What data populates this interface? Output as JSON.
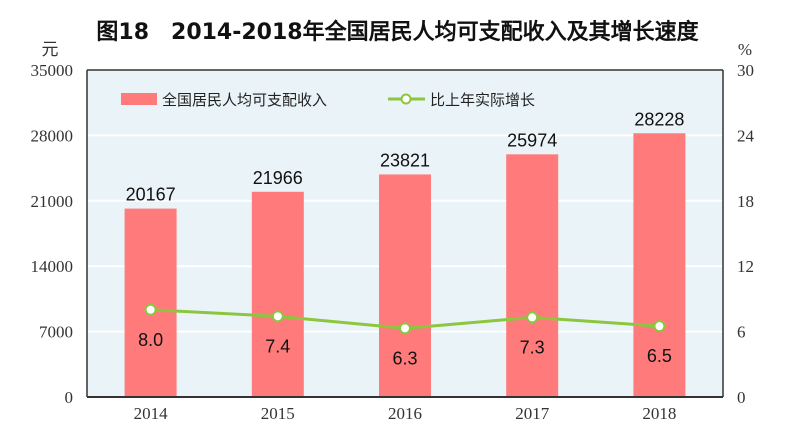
{
  "chart_data": {
    "type": "bar",
    "title": "图18　2014-2018年全国居民人均可支配收入及其增长速度",
    "categories": [
      "2014",
      "2015",
      "2016",
      "2017",
      "2018"
    ],
    "series": [
      {
        "name": "全国居民人均可支配收入",
        "type": "bar",
        "axis": "left",
        "values": [
          20167,
          21966,
          23821,
          25974,
          28228
        ],
        "color": "#ff7b7b"
      },
      {
        "name": "比上年实际增长",
        "type": "line",
        "axis": "right",
        "values": [
          8.0,
          7.4,
          6.3,
          7.3,
          6.5
        ],
        "color": "#8cc63f"
      }
    ],
    "ylabel_left": "元",
    "ylim_left": [
      0,
      35000
    ],
    "yticks_left": [
      "0",
      "7000",
      "14000",
      "21000",
      "28000",
      "35000"
    ],
    "ylabel_right": "%",
    "ylim_right": [
      0,
      30
    ],
    "yticks_right": [
      "0",
      "6",
      "12",
      "18",
      "24",
      "30"
    ],
    "grid": true,
    "legend_placement": "top-left",
    "colors": {
      "plot_bg": "#eaf4f8",
      "grid": "#ffffff",
      "axis": "#333333"
    }
  }
}
